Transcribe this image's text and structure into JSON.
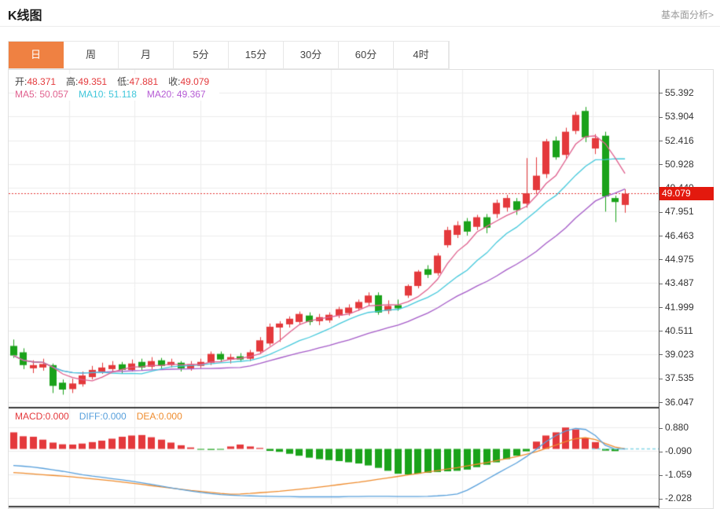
{
  "header": {
    "title": "K线图",
    "link": "基本面分析>"
  },
  "tabs": {
    "items": [
      "日",
      "周",
      "月",
      "5分",
      "15分",
      "30分",
      "60分",
      "4时"
    ],
    "active": "日",
    "active_index": 0
  },
  "ohlc_legend": [
    {
      "label": "开:",
      "value": "48.371"
    },
    {
      "label": "高:",
      "value": "49.351"
    },
    {
      "label": "低:",
      "value": "47.881"
    },
    {
      "label": "收:",
      "value": "49.079"
    }
  ],
  "ma_legend": [
    {
      "label": "MA5:",
      "value": "50.057",
      "color": "#e0608e"
    },
    {
      "label": "MA10:",
      "value": "51.118",
      "color": "#3fc6da"
    },
    {
      "label": "MA20:",
      "value": "49.367",
      "color": "#b55bd4"
    }
  ],
  "price_axis": {
    "labels": [
      "55.392",
      "53.904",
      "52.416",
      "50.928",
      "49.440",
      "47.951",
      "46.463",
      "44.975",
      "43.487",
      "41.999",
      "40.511",
      "39.023",
      "37.535",
      "36.047"
    ],
    "current_price": "49.079"
  },
  "macd_panel": {
    "legend": [
      {
        "label": "MACD:",
        "value": "0.000",
        "color": "#e4393c"
      },
      {
        "label": "DIFF:",
        "value": "0.000",
        "color": "#58a0dc"
      },
      {
        "label": "DEA:",
        "value": "0.000",
        "color": "#ef8c2e"
      }
    ],
    "axis_labels": [
      "0.880",
      "-0.090",
      "-1.059",
      "-2.028"
    ]
  },
  "colors": {
    "up": "#e4393c",
    "down": "#1aa21a",
    "tab_active": "#ef8142",
    "badge": "#e3190e",
    "grid": "#ededed",
    "axis_line": "#555555",
    "divider": "#3a3a3a",
    "dotted_price_line": "#e53935",
    "ma5": "#e0608e",
    "ma10": "#44c9dc",
    "ma20": "#a55bc8",
    "diff": "#58a0dc",
    "dea": "#ef8c2e",
    "zero_dash": "#86d7e8"
  },
  "chart_data": [
    {
      "type": "candlestick",
      "title": "K线图 (日)",
      "legend_ohlc": {
        "open": 48.371,
        "high": 49.351,
        "low": 47.881,
        "close": 49.079
      },
      "ma_values": {
        "MA5": 50.057,
        "MA10": 51.118,
        "MA20": 49.367
      },
      "ma_periods": [
        5,
        10,
        20
      ],
      "current_price": 49.079,
      "ylim": [
        36.047,
        55.392
      ],
      "y_ticks": [
        55.392,
        53.904,
        52.416,
        50.928,
        49.44,
        47.951,
        46.463,
        44.975,
        43.487,
        41.999,
        40.511,
        39.023,
        37.535,
        36.047
      ],
      "grid": true,
      "ohlc": [
        [
          39.55,
          39.95,
          38.8,
          38.95
        ],
        [
          39.15,
          39.4,
          38.1,
          38.35
        ],
        [
          38.15,
          38.65,
          37.85,
          38.35
        ],
        [
          38.2,
          38.75,
          38.0,
          38.42
        ],
        [
          38.35,
          38.45,
          36.6,
          37.05
        ],
        [
          37.25,
          37.45,
          36.5,
          36.82
        ],
        [
          36.85,
          37.5,
          36.6,
          37.2
        ],
        [
          37.15,
          37.95,
          37.0,
          37.7
        ],
        [
          37.6,
          38.3,
          37.45,
          38.05
        ],
        [
          37.95,
          38.5,
          37.8,
          38.2
        ],
        [
          38.1,
          38.6,
          37.9,
          38.35
        ],
        [
          38.4,
          38.55,
          37.85,
          38.05
        ],
        [
          38.05,
          38.7,
          37.95,
          38.45
        ],
        [
          38.55,
          38.75,
          38.0,
          38.2
        ],
        [
          38.25,
          38.85,
          38.1,
          38.6
        ],
        [
          38.65,
          38.8,
          38.1,
          38.3
        ],
        [
          38.35,
          38.75,
          38.2,
          38.55
        ],
        [
          38.5,
          38.6,
          37.95,
          38.15
        ],
        [
          38.15,
          38.6,
          38.0,
          38.4
        ],
        [
          38.3,
          38.75,
          38.15,
          38.55
        ],
        [
          38.5,
          39.2,
          38.35,
          39.05
        ],
        [
          39.05,
          39.2,
          38.55,
          38.7
        ],
        [
          38.7,
          39.05,
          38.45,
          38.85
        ],
        [
          38.9,
          39.1,
          38.55,
          38.7
        ],
        [
          38.75,
          39.3,
          38.6,
          39.15
        ],
        [
          39.2,
          40.1,
          39.05,
          39.9
        ],
        [
          39.7,
          40.95,
          39.55,
          40.75
        ],
        [
          40.7,
          41.1,
          39.8,
          40.95
        ],
        [
          40.9,
          41.4,
          40.7,
          41.25
        ],
        [
          41.05,
          41.7,
          40.9,
          41.55
        ],
        [
          41.45,
          41.65,
          40.85,
          41.05
        ],
        [
          41.1,
          41.55,
          40.85,
          41.35
        ],
        [
          41.15,
          41.65,
          41.0,
          41.5
        ],
        [
          41.45,
          42.0,
          41.3,
          41.85
        ],
        [
          41.6,
          42.15,
          41.45,
          41.95
        ],
        [
          41.9,
          42.45,
          41.75,
          42.3
        ],
        [
          42.25,
          42.9,
          42.05,
          42.7
        ],
        [
          42.72,
          42.9,
          41.5,
          41.64
        ],
        [
          41.75,
          42.4,
          41.55,
          42.05
        ],
        [
          42.1,
          42.45,
          41.75,
          41.9
        ],
        [
          42.7,
          43.4,
          42.55,
          43.3
        ],
        [
          43.3,
          44.3,
          43.15,
          44.2
        ],
        [
          44.35,
          44.6,
          43.8,
          44.0
        ],
        [
          44.1,
          45.35,
          43.95,
          45.2
        ],
        [
          45.85,
          47.0,
          45.7,
          46.8
        ],
        [
          46.5,
          47.35,
          46.3,
          47.1
        ],
        [
          47.35,
          47.55,
          46.45,
          46.7
        ],
        [
          47.0,
          47.75,
          46.8,
          47.6
        ],
        [
          47.6,
          47.8,
          46.6,
          46.95
        ],
        [
          47.8,
          48.7,
          47.55,
          48.5
        ],
        [
          48.2,
          49.0,
          47.95,
          48.8
        ],
        [
          48.6,
          48.8,
          47.75,
          48.05
        ],
        [
          48.45,
          51.3,
          48.2,
          49.1
        ],
        [
          49.3,
          51.35,
          49.05,
          50.2
        ],
        [
          50.3,
          52.5,
          50.05,
          52.35
        ],
        [
          52.4,
          52.65,
          51.2,
          51.35
        ],
        [
          51.5,
          53.2,
          51.25,
          52.95
        ],
        [
          53.0,
          54.2,
          52.8,
          54.0
        ],
        [
          54.25,
          54.5,
          52.3,
          52.6
        ],
        [
          51.9,
          52.8,
          51.55,
          52.55
        ],
        [
          52.7,
          52.95,
          47.95,
          48.9
        ],
        [
          48.8,
          48.95,
          47.3,
          48.55
        ],
        [
          48.371,
          49.351,
          47.881,
          49.079
        ]
      ]
    },
    {
      "type": "bar",
      "title": "MACD",
      "ylim": [
        -2.028,
        0.88
      ],
      "y_ticks": [
        0.88,
        -0.09,
        -1.059,
        -2.028
      ],
      "note": "bars aligned with candlestick indexes; red = positive, green = negative",
      "series": [
        {
          "name": "MACD",
          "type": "bar",
          "values": [
            0.68,
            0.52,
            0.5,
            0.38,
            0.26,
            0.19,
            0.18,
            0.22,
            0.28,
            0.34,
            0.42,
            0.5,
            0.55,
            0.57,
            0.48,
            0.38,
            0.26,
            0.15,
            0.06,
            -0.02,
            -0.04,
            -0.03,
            0.1,
            0.18,
            0.1,
            0.04,
            -0.08,
            -0.12,
            -0.2,
            -0.28,
            -0.36,
            -0.42,
            -0.46,
            -0.5,
            -0.55,
            -0.6,
            -0.68,
            -0.78,
            -0.9,
            -1.02,
            -1.05,
            -1.02,
            -0.98,
            -0.95,
            -0.92,
            -0.9,
            -0.85,
            -0.75,
            -0.65,
            -0.55,
            -0.42,
            -0.28,
            -0.1,
            0.3,
            0.55,
            0.68,
            0.88,
            0.8,
            0.45,
            0.28,
            -0.07,
            -0.09,
            0.0
          ]
        },
        {
          "name": "DIFF",
          "type": "line",
          "values": [
            -0.68,
            -0.71,
            -0.75,
            -0.8,
            -0.86,
            -0.92,
            -0.99,
            -1.06,
            -1.12,
            -1.17,
            -1.22,
            -1.27,
            -1.33,
            -1.39,
            -1.46,
            -1.53,
            -1.6,
            -1.67,
            -1.73,
            -1.79,
            -1.84,
            -1.88,
            -1.9,
            -1.92,
            -1.93,
            -1.94,
            -1.95,
            -1.96,
            -1.96,
            -1.97,
            -1.97,
            -1.97,
            -1.97,
            -1.97,
            -1.96,
            -1.96,
            -1.95,
            -1.95,
            -1.95,
            -1.96,
            -1.96,
            -1.96,
            -1.95,
            -1.93,
            -1.9,
            -1.85,
            -1.7,
            -1.48,
            -1.25,
            -1.02,
            -0.8,
            -0.58,
            -0.32,
            -0.02,
            0.3,
            0.55,
            0.74,
            0.84,
            0.8,
            0.55,
            0.15,
            0.0,
            0.0
          ]
        },
        {
          "name": "DEA",
          "type": "line",
          "values": [
            -0.97,
            -1.0,
            -1.03,
            -1.06,
            -1.09,
            -1.12,
            -1.15,
            -1.19,
            -1.23,
            -1.27,
            -1.31,
            -1.36,
            -1.41,
            -1.46,
            -1.51,
            -1.56,
            -1.61,
            -1.66,
            -1.71,
            -1.75,
            -1.79,
            -1.83,
            -1.86,
            -1.85,
            -1.83,
            -1.8,
            -1.77,
            -1.74,
            -1.7,
            -1.66,
            -1.62,
            -1.57,
            -1.52,
            -1.47,
            -1.42,
            -1.37,
            -1.31,
            -1.25,
            -1.19,
            -1.13,
            -1.07,
            -1.01,
            -0.95,
            -0.89,
            -0.83,
            -0.77,
            -0.7,
            -0.63,
            -0.56,
            -0.48,
            -0.4,
            -0.32,
            -0.22,
            -0.12,
            0.02,
            0.16,
            0.3,
            0.42,
            0.46,
            0.38,
            0.22,
            0.08,
            0.0
          ]
        }
      ]
    }
  ]
}
